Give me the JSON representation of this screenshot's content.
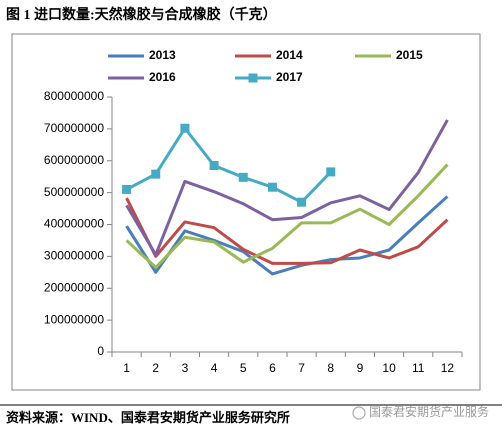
{
  "header": {
    "title": "图 1  进口数量:天然橡胶与合成橡胶（千克）"
  },
  "chart_data": {
    "type": "line",
    "categories": [
      "1",
      "2",
      "3",
      "4",
      "5",
      "6",
      "7",
      "8",
      "9",
      "10",
      "11",
      "12"
    ],
    "series": [
      {
        "name": "2013",
        "color": "#4a7ebb",
        "values": [
          395000000,
          250000000,
          380000000,
          350000000,
          315000000,
          245000000,
          272000000,
          290000000,
          295000000,
          320000000,
          405000000,
          488000000
        ]
      },
      {
        "name": "2014",
        "color": "#be4b48",
        "values": [
          483000000,
          300000000,
          408000000,
          390000000,
          322000000,
          278000000,
          278000000,
          280000000,
          320000000,
          295000000,
          330000000,
          415000000
        ]
      },
      {
        "name": "2015",
        "color": "#98b954",
        "values": [
          350000000,
          265000000,
          360000000,
          345000000,
          282000000,
          325000000,
          405000000,
          405000000,
          448000000,
          400000000,
          490000000,
          588000000
        ]
      },
      {
        "name": "2016",
        "color": "#7d60a0",
        "values": [
          460000000,
          305000000,
          535000000,
          503000000,
          465000000,
          415000000,
          422000000,
          468000000,
          490000000,
          447000000,
          563000000,
          728000000
        ]
      },
      {
        "name": "2017",
        "color": "#46aac5",
        "marker": "square",
        "values": [
          510000000,
          558000000,
          702000000,
          585000000,
          548000000,
          517000000,
          470000000,
          565000000,
          null,
          null,
          null,
          null
        ]
      }
    ],
    "ylim": [
      0,
      800000000
    ],
    "yticks": [
      0,
      100000000,
      200000000,
      300000000,
      400000000,
      500000000,
      600000000,
      700000000,
      800000000
    ],
    "grid": false,
    "legend": "top"
  },
  "footer": {
    "source": "资料来源：WIND、国泰君安期货产业服务研究所",
    "watermark": "国泰君安期货产业服务"
  }
}
